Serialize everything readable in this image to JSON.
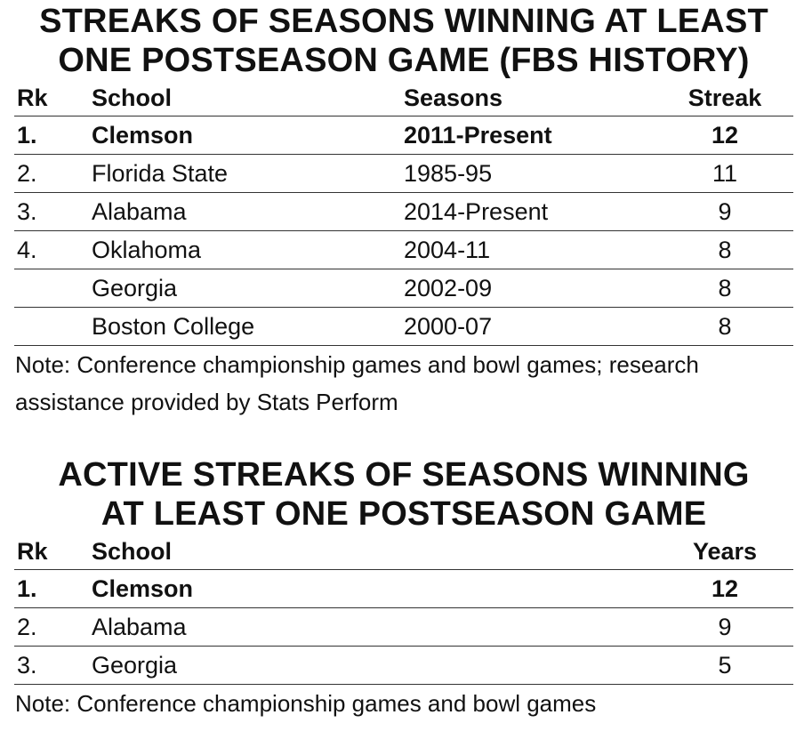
{
  "table1": {
    "title_line1": "STREAKS OF SEASONS WINNING AT LEAST",
    "title_line2": "ONE POSTSEASON GAME (FBS HISTORY)",
    "headers": {
      "rk": "Rk",
      "school": "School",
      "seasons": "Seasons",
      "streak": "Streak"
    },
    "rows": [
      {
        "rk": "1.",
        "school": "Clemson",
        "seasons": "2011-Present",
        "streak": "12"
      },
      {
        "rk": "2.",
        "school": "Florida State",
        "seasons": "1985-95",
        "streak": "11"
      },
      {
        "rk": "3.",
        "school": "Alabama",
        "seasons": "2014-Present",
        "streak": "9"
      },
      {
        "rk": "4.",
        "school": "Oklahoma",
        "seasons": "2004-11",
        "streak": "8"
      },
      {
        "rk": "",
        "school": "Georgia",
        "seasons": "2002-09",
        "streak": "8"
      },
      {
        "rk": "",
        "school": "Boston College",
        "seasons": "2000-07",
        "streak": "8"
      }
    ],
    "note_line1": "Note: Conference championship games and bowl games; research",
    "note_line2": "assistance provided by Stats Perform"
  },
  "table2": {
    "title_line1": "ACTIVE STREAKS OF SEASONS WINNING",
    "title_line2": "AT LEAST ONE POSTSEASON GAME",
    "headers": {
      "rk": "Rk",
      "school": "School",
      "years": "Years"
    },
    "rows": [
      {
        "rk": "1.",
        "school": "Clemson",
        "years": "12"
      },
      {
        "rk": "2.",
        "school": "Alabama",
        "years": "9"
      },
      {
        "rk": "3.",
        "school": "Georgia",
        "years": "5"
      }
    ],
    "note": "Note: Conference championship games and bowl games"
  }
}
